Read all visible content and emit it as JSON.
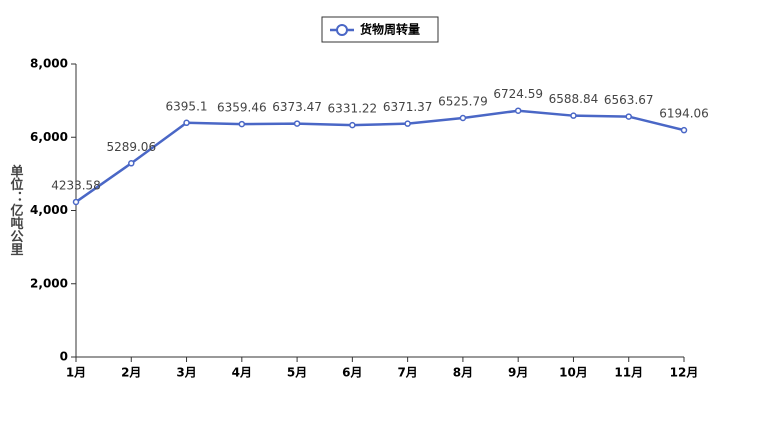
{
  "chart_data": {
    "type": "line",
    "y_label": "单位：亿吨公里",
    "categories": [
      "1月",
      "2月",
      "3月",
      "4月",
      "5月",
      "6月",
      "7月",
      "8月",
      "9月",
      "10月",
      "11月",
      "12月"
    ],
    "series": [
      {
        "name": "货物周转量",
        "color": "#4a67c6",
        "values": [
          4233.58,
          5289.06,
          6395.1,
          6359.46,
          6373.47,
          6331.22,
          6371.37,
          6525.79,
          6724.59,
          6588.84,
          6563.67,
          6194.06
        ]
      }
    ],
    "ylim": [
      0,
      8000
    ],
    "yticks": [
      0,
      {
        "value": 2000,
        "label": "2,000"
      },
      {
        "value": 4000,
        "label": "4,000"
      },
      {
        "value": 6000,
        "label": "6,000"
      },
      {
        "value": 8000,
        "label": "8,000"
      }
    ],
    "legend": "top"
  }
}
